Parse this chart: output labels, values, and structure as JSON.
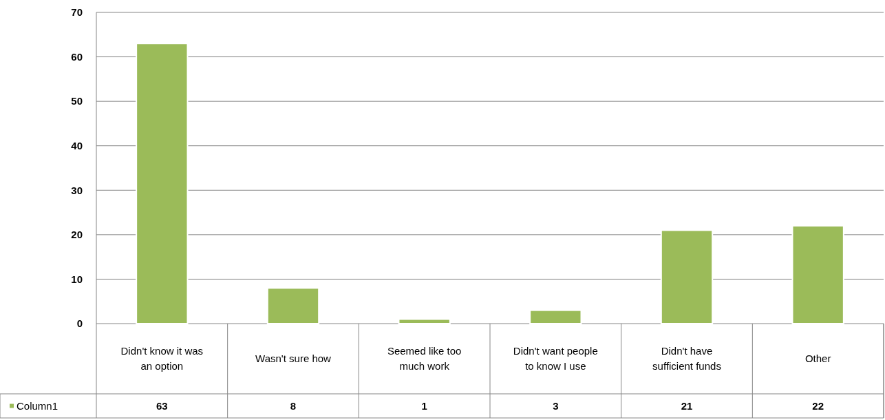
{
  "chart_data": {
    "type": "bar",
    "categories": [
      "Didn't know it was an option",
      "Wasn't sure how",
      "Seemed like too much work",
      "Didn't want people to know I use",
      "Didn't have sufficient funds",
      "Other"
    ],
    "series": [
      {
        "name": "Column1",
        "color": "#9bbb59",
        "values": [
          63,
          8,
          1,
          3,
          21,
          22
        ]
      }
    ],
    "ylim": [
      0,
      70
    ],
    "yticks": [
      0,
      10,
      20,
      30,
      40,
      50,
      60,
      70
    ],
    "grid": "y",
    "data_labels": true,
    "legend": "bottom"
  }
}
